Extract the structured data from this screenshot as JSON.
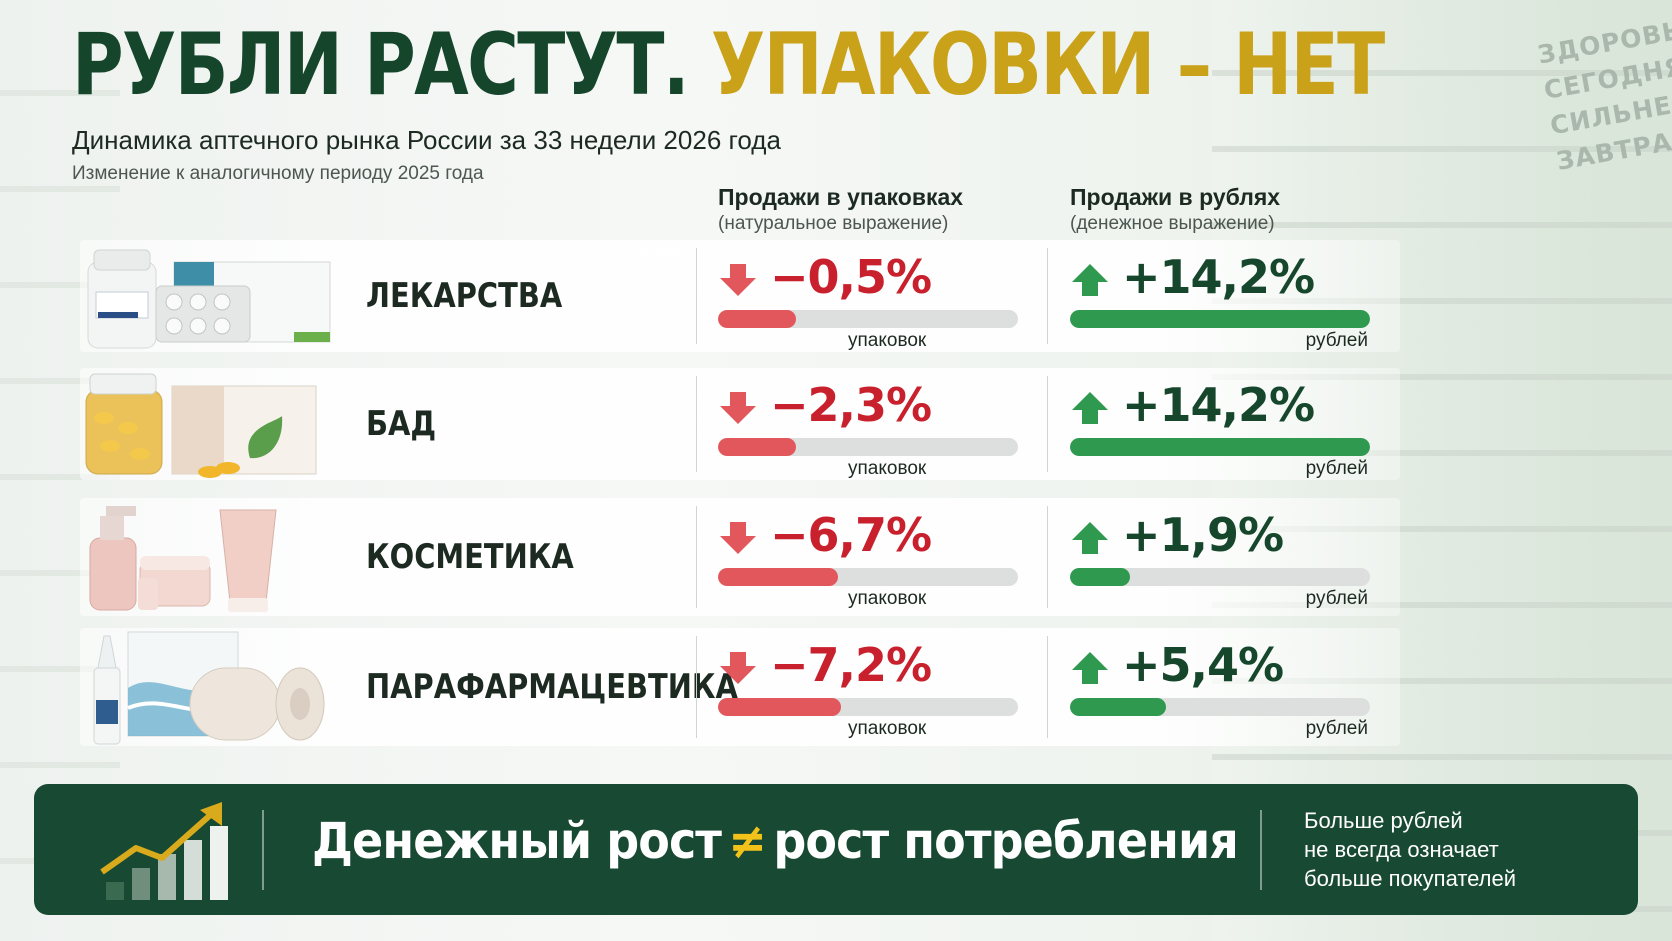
{
  "title": {
    "part1": "РУБЛИ РАСТУТ.",
    "part2": "УПАКОВКИ – НЕТ"
  },
  "subtitle": "Динамика аптечного рынка России за 33 недели 2026 года",
  "note": "Изменение к аналогичному периоду 2025 года",
  "slogan": [
    "ЗДОРОВЬЕ",
    "СЕГОДНЯ",
    "СИЛЬНЕЕ",
    "ЗАВТРА"
  ],
  "columns": {
    "packs": {
      "title": "Продажи в упаковках",
      "sub": "(натуральное выражение)",
      "unit": "упаковок"
    },
    "rubles": {
      "title": "Продажи в рублях",
      "sub": "(денежное выражение)",
      "unit": "рублей"
    }
  },
  "colors": {
    "dark_green": "#15462b",
    "gold": "#c9a21a",
    "red": "#c8202c",
    "green": "#2f9a4f",
    "footer": "#184a33"
  },
  "chart_data": {
    "type": "table",
    "categories": [
      "ЛЕКАРСТВА",
      "БАД",
      "КОСМЕТИКА",
      "ПАРАФАРМАЦЕВТИКА"
    ],
    "series": [
      {
        "name": "Продажи в упаковках",
        "values": [
          -0.5,
          -2.3,
          -6.7,
          -7.2
        ],
        "labels": [
          "−0,5%",
          "−2,3%",
          "−6,7%",
          "−7,2%"
        ],
        "bar_fill": [
          0.26,
          0.26,
          0.4,
          0.41
        ]
      },
      {
        "name": "Продажи в рублях",
        "values": [
          14.2,
          14.2,
          1.9,
          5.4
        ],
        "labels": [
          "+14,2%",
          "+14,2%",
          "+1,9%",
          "+5,4%"
        ],
        "bar_fill": [
          1.0,
          1.0,
          0.2,
          0.32
        ]
      }
    ]
  },
  "footer": {
    "main_left": "Денежный рост",
    "neq": "≠",
    "main_right": "рост потребления",
    "side": [
      "Больше рублей",
      "не всегда означает",
      "больше покупателей"
    ]
  }
}
